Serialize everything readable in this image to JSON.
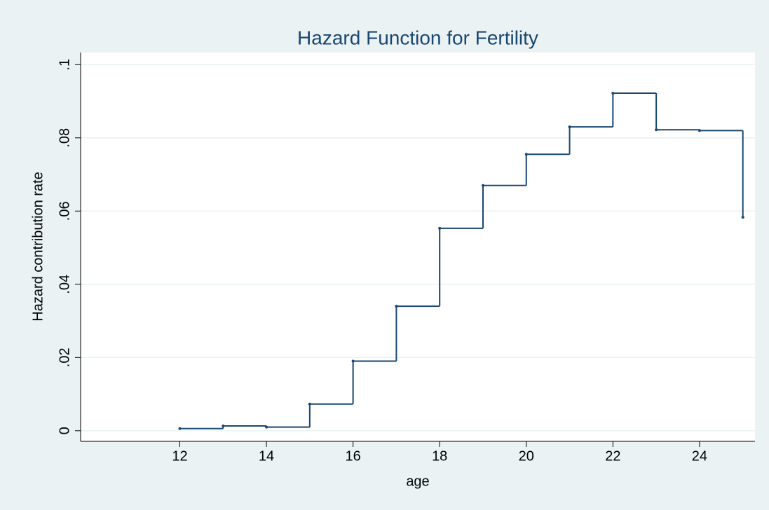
{
  "chart_data": {
    "type": "step",
    "title": "Hazard Function for Fertility",
    "xlabel": "age",
    "ylabel": "Hazard contribution rate",
    "series": [
      {
        "name": "hazard",
        "color": "#1a476f",
        "x": [
          12,
          13,
          14,
          15,
          16,
          17,
          18,
          19,
          20,
          21,
          22,
          23,
          24,
          25
        ],
        "values": [
          0.0006,
          0.0013,
          0.001,
          0.0073,
          0.019,
          0.034,
          0.0553,
          0.067,
          0.0755,
          0.083,
          0.0922,
          0.0822,
          0.082,
          0.0583
        ]
      }
    ],
    "xlim": [
      9.71,
      25.28
    ],
    "xticks": [
      12,
      14,
      16,
      18,
      20,
      22,
      24
    ],
    "ylim": [
      -0.0029,
      0.1033
    ],
    "yticks": [
      0,
      {
        "value": 0.02,
        "label": ".02"
      },
      {
        "value": 0.04,
        "label": ".04"
      },
      {
        "value": 0.06,
        "label": ".06"
      },
      {
        "value": 0.08,
        "label": ".08"
      },
      {
        "value": 0.1,
        "label": ".1"
      }
    ],
    "grid": true
  }
}
